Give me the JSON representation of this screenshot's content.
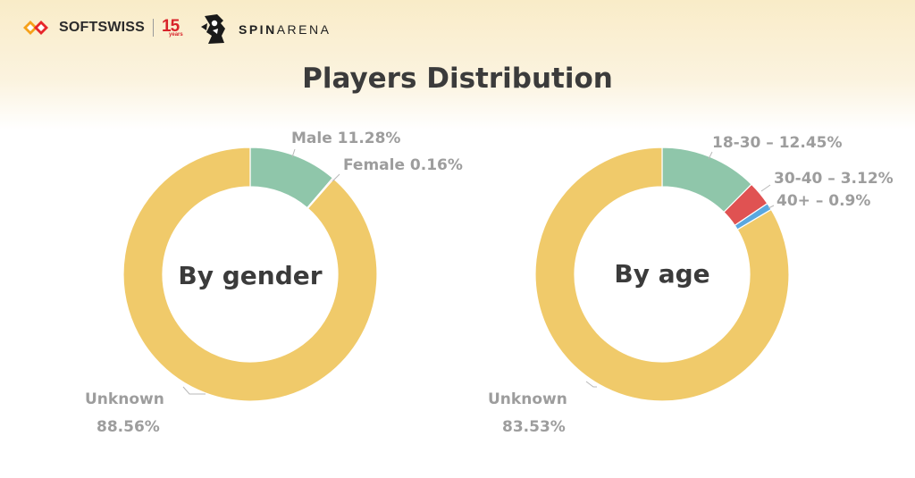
{
  "header": {
    "softswiss_name": "SOFTSWISS",
    "softswiss_years_number": "15",
    "softswiss_years_label": "years",
    "spinarena_part1": "SPIN",
    "spinarena_part2": "ARENA"
  },
  "title": "Players Distribution",
  "colors": {
    "unknown": "#f0ca6a",
    "male": "#8fc6aa",
    "female": "#e05252",
    "age_18_30": "#8fc6aa",
    "age_30_40": "#e05252",
    "age_40_plus": "#5aa8e0",
    "label_text": "#9d9d9d",
    "title_text": "#3b3b3b",
    "brand_red": "#d8232a"
  },
  "chart_data": [
    {
      "type": "donut",
      "center_label": "By gender",
      "slices": [
        {
          "label": "Male 11.28%",
          "value": 11.28,
          "color": "#8fc6aa"
        },
        {
          "label": "Female 0.16%",
          "value": 0.16,
          "color": "#e05252"
        },
        {
          "label": "Unknown",
          "label2": "88.56%",
          "value": 88.56,
          "color": "#f0ca6a"
        }
      ]
    },
    {
      "type": "donut",
      "center_label": "By age",
      "slices": [
        {
          "label": "18-30 – 12.45%",
          "value": 12.45,
          "color": "#8fc6aa"
        },
        {
          "label": "30-40 – 3.12%",
          "value": 3.12,
          "color": "#e05252"
        },
        {
          "label": "40+ – 0.9%",
          "value": 0.9,
          "color": "#5aa8e0"
        },
        {
          "label": "Unknown",
          "label2": "83.53%",
          "value": 83.53,
          "color": "#f0ca6a"
        }
      ]
    }
  ]
}
